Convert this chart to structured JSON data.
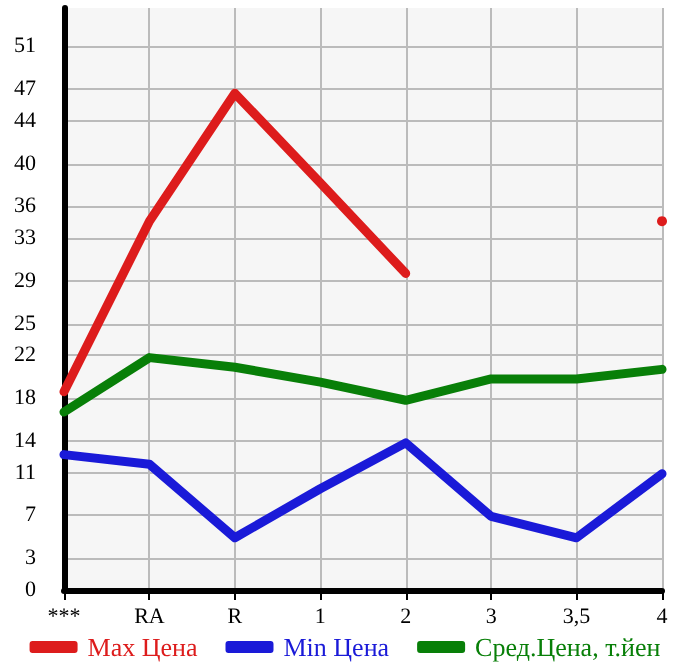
{
  "chart_data": {
    "type": "line",
    "categories": [
      "***",
      "RA",
      "R",
      "1",
      "2",
      "3",
      "3,5",
      "4"
    ],
    "series": [
      {
        "name": "Max Цена",
        "color": "#dd1c1c",
        "values": [
          18.6,
          34.6,
          46.6,
          38.2,
          29.7,
          null,
          null,
          34.6
        ]
      },
      {
        "name": "Min Цена",
        "color": "#1a1ad8",
        "values": [
          12.7,
          11.8,
          4.9,
          9.5,
          13.8,
          6.9,
          4.9,
          10.9
        ]
      },
      {
        "name": "Сред.Цена, т.йен",
        "color": "#087f08",
        "values": [
          16.7,
          21.8,
          20.9,
          19.5,
          17.8,
          19.8,
          19.8,
          20.7
        ]
      }
    ],
    "ylim": [
      0,
      54.6
    ],
    "yticks": [
      0,
      3,
      7,
      11,
      14,
      18,
      22,
      25,
      29,
      33,
      36,
      40,
      44,
      47,
      51
    ],
    "grid": true,
    "legend": "bottom",
    "marker": "none",
    "line_style": "solid"
  }
}
